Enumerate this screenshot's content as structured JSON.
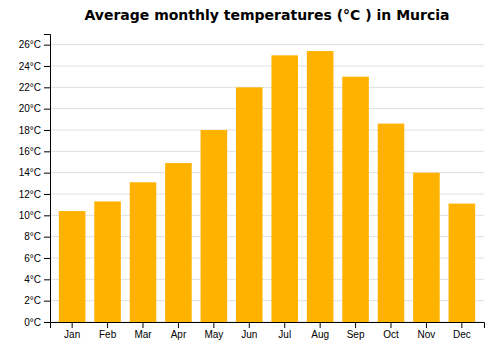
{
  "chart_data": {
    "type": "bar",
    "title": "Average monthly temperatures (°C ) in Murcia",
    "categories": [
      "Jan",
      "Feb",
      "Mar",
      "Apr",
      "May",
      "Jun",
      "Jul",
      "Aug",
      "Sep",
      "Oct",
      "Nov",
      "Dec"
    ],
    "values": [
      10.4,
      11.3,
      13.1,
      14.9,
      18.0,
      22.0,
      25.0,
      25.4,
      23.0,
      18.6,
      14.0,
      11.1
    ],
    "color": "#FFB300",
    "ylim": [
      0,
      27
    ],
    "yticks": [
      {
        "value": 0,
        "label": "0°C"
      },
      {
        "value": 2,
        "label": "2°C"
      },
      {
        "value": 4,
        "label": "4°C"
      },
      {
        "value": 6,
        "label": "6°C"
      },
      {
        "value": 8,
        "label": "8°C"
      },
      {
        "value": 10,
        "label": "10°C"
      },
      {
        "value": 12,
        "label": "12°C"
      },
      {
        "value": 14,
        "label": "14°C"
      },
      {
        "value": 16,
        "label": "16°C"
      },
      {
        "value": 18,
        "label": "18°C"
      },
      {
        "value": 20,
        "label": "20°C"
      },
      {
        "value": 22,
        "label": "22°C"
      },
      {
        "value": 24,
        "label": "24°C"
      },
      {
        "value": 26,
        "label": "26°C"
      }
    ],
    "grid": true
  }
}
